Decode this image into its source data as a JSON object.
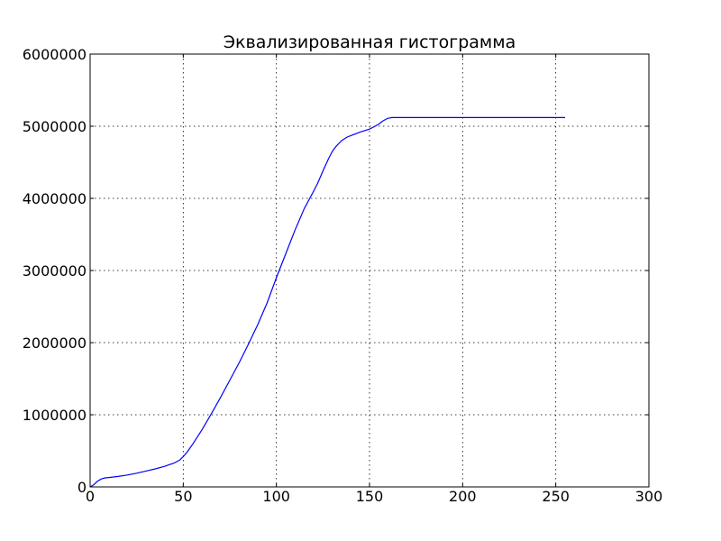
{
  "chart_data": {
    "type": "line",
    "title": "Эквализированная гистограмма",
    "xlabel": "",
    "ylabel": "",
    "xlim": [
      0,
      300
    ],
    "ylim": [
      0,
      6000000
    ],
    "x_ticks": [
      0,
      50,
      100,
      150,
      200,
      250,
      300
    ],
    "y_ticks": [
      0,
      1000000,
      2000000,
      3000000,
      4000000,
      5000000,
      6000000
    ],
    "x_tick_labels": [
      "0",
      "50",
      "100",
      "150",
      "200",
      "250",
      "300"
    ],
    "y_tick_labels": [
      "0",
      "1000000",
      "2000000",
      "3000000",
      "4000000",
      "5000000",
      "6000000"
    ],
    "grid": true,
    "legend": false,
    "series": [
      {
        "color": "#0000ff",
        "x": [
          0,
          2,
          4,
          6,
          8,
          10,
          15,
          20,
          25,
          30,
          35,
          40,
          45,
          48,
          50,
          52,
          55,
          60,
          65,
          70,
          75,
          80,
          85,
          90,
          95,
          100,
          105,
          110,
          115,
          120,
          122,
          125,
          128,
          130,
          132,
          135,
          138,
          140,
          145,
          150,
          153,
          155,
          157,
          159,
          160,
          161,
          162,
          165,
          170,
          180,
          200,
          220,
          240,
          255
        ],
        "y": [
          0,
          30000,
          80000,
          110000,
          125000,
          130000,
          145000,
          165000,
          190000,
          220000,
          250000,
          285000,
          330000,
          370000,
          420000,
          480000,
          590000,
          790000,
          1010000,
          1240000,
          1480000,
          1720000,
          1980000,
          2250000,
          2550000,
          2900000,
          3230000,
          3560000,
          3860000,
          4100000,
          4200000,
          4380000,
          4550000,
          4650000,
          4720000,
          4800000,
          4850000,
          4870000,
          4920000,
          4960000,
          5000000,
          5030000,
          5070000,
          5100000,
          5110000,
          5115000,
          5120000,
          5120000,
          5120000,
          5120000,
          5120000,
          5120000,
          5120000,
          5120000
        ]
      }
    ]
  }
}
